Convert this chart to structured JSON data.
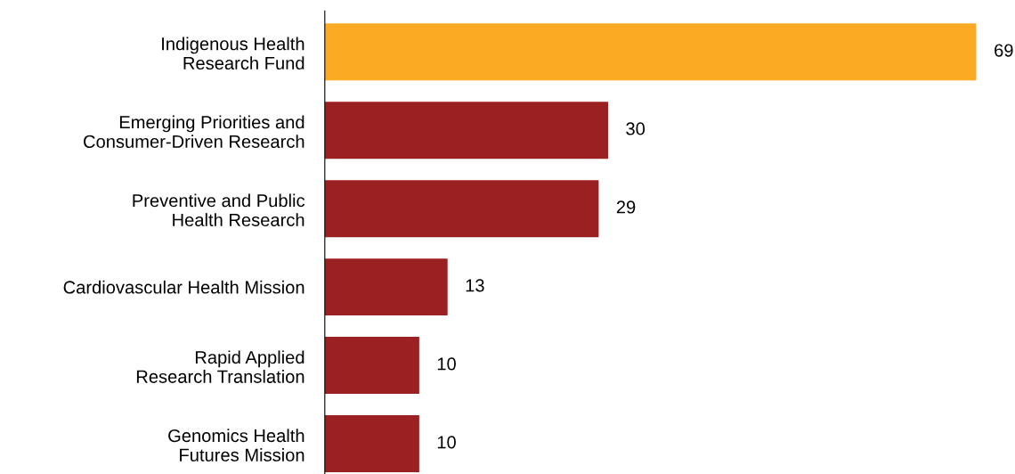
{
  "chart_data": {
    "type": "bar",
    "orientation": "horizontal",
    "categories": [
      "Indigenous Health\nResearch Fund",
      "Emerging Priorities and\nConsumer-Driven Research",
      "Preventive and Public\nHealth Research",
      "Cardiovascular Health Mission",
      "Rapid Applied\nResearch Translation",
      "Genomics Health\nFutures Mission"
    ],
    "values": [
      69,
      30,
      29,
      13,
      10,
      10
    ],
    "colors": [
      "#fbaa24",
      "#9b2022",
      "#9b2022",
      "#9b2022",
      "#9b2022",
      "#9b2022"
    ],
    "data_labels": true,
    "tick_labels": "y",
    "grid": false,
    "legend": false
  }
}
